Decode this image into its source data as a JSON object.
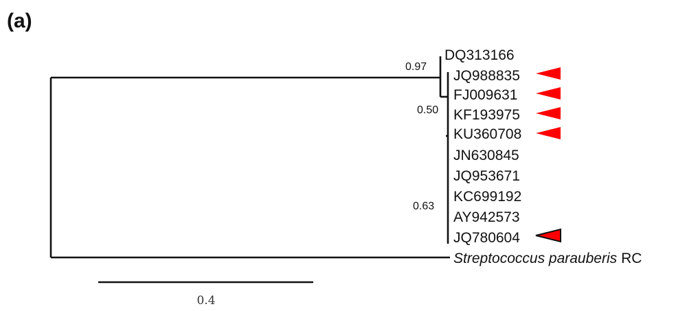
{
  "panel_label": "(a)",
  "support_values": [
    "0.97",
    "0.50",
    "0.63"
  ],
  "leaves": [
    {
      "label": "DQ313166",
      "marker": "none"
    },
    {
      "label": "JQ988835",
      "marker": "red"
    },
    {
      "label": "FJ009631",
      "marker": "red"
    },
    {
      "label": "KF193975",
      "marker": "red"
    },
    {
      "label": "KU360708",
      "marker": "red"
    },
    {
      "label": "JN630845",
      "marker": "none"
    },
    {
      "label": "JQ953671",
      "marker": "none"
    },
    {
      "label": "KC699192",
      "marker": "none"
    },
    {
      "label": "AY942573",
      "marker": "none"
    },
    {
      "label": "JQ780604",
      "marker": "red-outlined"
    }
  ],
  "outgroup": {
    "species": "Streptococcus parauberis",
    "suffix": "RC"
  },
  "scale_bar": {
    "label": "0.4"
  },
  "colors": {
    "marker": "#ff0000",
    "line": "#111111"
  }
}
